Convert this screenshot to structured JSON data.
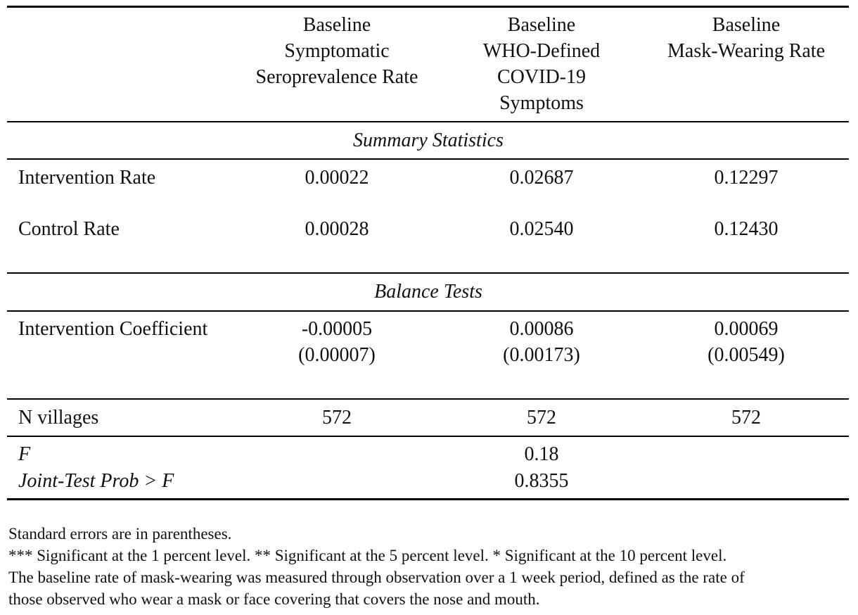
{
  "header": {
    "columns": [
      [
        "Baseline",
        "Symptomatic",
        "Seroprevalence Rate"
      ],
      [
        "Baseline",
        "WHO-Defined",
        "COVID-19",
        "Symptoms"
      ],
      [
        "Baseline",
        "Mask-Wearing Rate"
      ]
    ]
  },
  "sections": {
    "summary": "Summary Statistics",
    "balance": "Balance Tests"
  },
  "rows": {
    "intervention_rate": {
      "label": "Intervention Rate",
      "values": [
        "0.00022",
        "0.02687",
        "0.12297"
      ]
    },
    "control_rate": {
      "label": "Control Rate",
      "values": [
        "0.00028",
        "0.02540",
        "0.12430"
      ]
    },
    "intervention_coefficient": {
      "label": "Intervention Coefficient",
      "values": [
        "-0.00005",
        "0.00086",
        "0.00069"
      ],
      "se": [
        "(0.00007)",
        "(0.00173)",
        "(0.00549)"
      ]
    },
    "n_villages": {
      "label": "N villages",
      "values": [
        "572",
        "572",
        "572"
      ]
    },
    "f_stat": {
      "label": "F",
      "value": "0.18"
    },
    "joint_prob": {
      "label": "Joint-Test Prob > F",
      "value": "0.8355"
    }
  },
  "notes": [
    "Standard errors are in parentheses.",
    "*** Significant at the 1 percent level. ** Significant at the 5 percent level. * Significant at the 10 percent level.",
    "The baseline rate of mask-wearing was measured through observation over a 1 week period, defined as the rate of",
    "those observed who wear a mask or face covering that covers the nose and mouth."
  ]
}
